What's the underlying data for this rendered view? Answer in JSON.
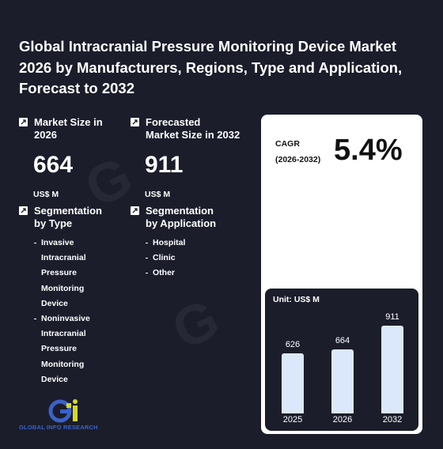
{
  "title": "Global Intracranial Pressure Monitoring Device Market 2026 by Manufacturers, Regions, Type and Application, Forecast to 2032",
  "market_size": {
    "label_line1": "Market Size in",
    "label_line2": "2026",
    "value": "664",
    "unit": "US$ M"
  },
  "forecasted": {
    "label_line1": "Forecasted",
    "label_line2": "Market Size in 2032",
    "value": "911",
    "unit": "US$ M"
  },
  "seg_type": {
    "label_line1": "Segmentation",
    "label_line2": "by Type",
    "items": [
      [
        "Invasive",
        "Intracranial",
        "Pressure",
        "Monitoring",
        "Device"
      ],
      [
        "Noninvasive",
        "Intracranial",
        "Pressure",
        "Monitoring",
        "Device"
      ]
    ]
  },
  "seg_app": {
    "label_line1": "Segmentation",
    "label_line2": "by Application",
    "items": [
      "Hospital",
      "Clinic",
      "Other"
    ]
  },
  "cagr": {
    "label_line1": "CAGR",
    "label_line2": "(2026-2032)",
    "value": "5.4%"
  },
  "chart_data": {
    "type": "bar",
    "unit_label": "Unit: US$ M",
    "categories": [
      "2025",
      "2026",
      "2032"
    ],
    "values": [
      626,
      664,
      911
    ],
    "ylim": [
      0,
      1000
    ],
    "bar_color": "#dbe8fb"
  },
  "logo": {
    "text": "GLOBAL INFO RESEARCH",
    "icon": "gir-logo-icon"
  },
  "colors": {
    "background": "#1b1d2b",
    "accent_blue": "#3a62c8",
    "accent_yellow": "#d4d82a"
  }
}
